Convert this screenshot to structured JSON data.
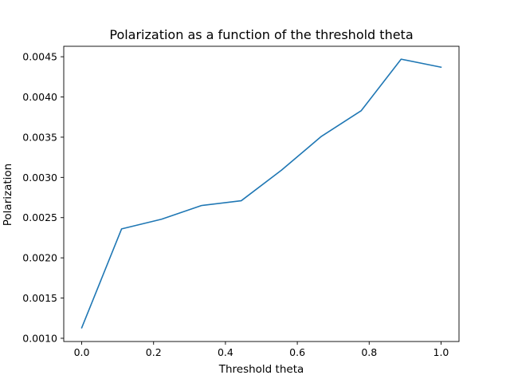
{
  "chart_data": {
    "type": "line",
    "title": "Polarization as a function of the threshold theta",
    "xlabel": "Threshold theta",
    "ylabel": "Polarization",
    "xlim": [
      -0.05,
      1.05
    ],
    "ylim": [
      0.00096,
      0.00463
    ],
    "x_ticks": [
      0.0,
      0.2,
      0.4,
      0.6,
      0.8,
      1.0
    ],
    "x_tick_labels": [
      "0.0",
      "0.2",
      "0.4",
      "0.6",
      "0.8",
      "1.0"
    ],
    "y_ticks": [
      0.001,
      0.0015,
      0.002,
      0.0025,
      0.003,
      0.0035,
      0.004,
      0.0045
    ],
    "y_tick_labels": [
      "0.0010",
      "0.0015",
      "0.0020",
      "0.0025",
      "0.0030",
      "0.0035",
      "0.0040",
      "0.0045"
    ],
    "grid": false,
    "series": [
      {
        "color": "#1f77b4",
        "x": [
          0.0,
          0.111,
          0.222,
          0.333,
          0.444,
          0.556,
          0.667,
          0.778,
          0.889,
          1.0
        ],
        "y": [
          0.00113,
          0.00236,
          0.00248,
          0.00265,
          0.00271,
          0.00309,
          0.00351,
          0.00383,
          0.00447,
          0.00437
        ]
      }
    ]
  }
}
